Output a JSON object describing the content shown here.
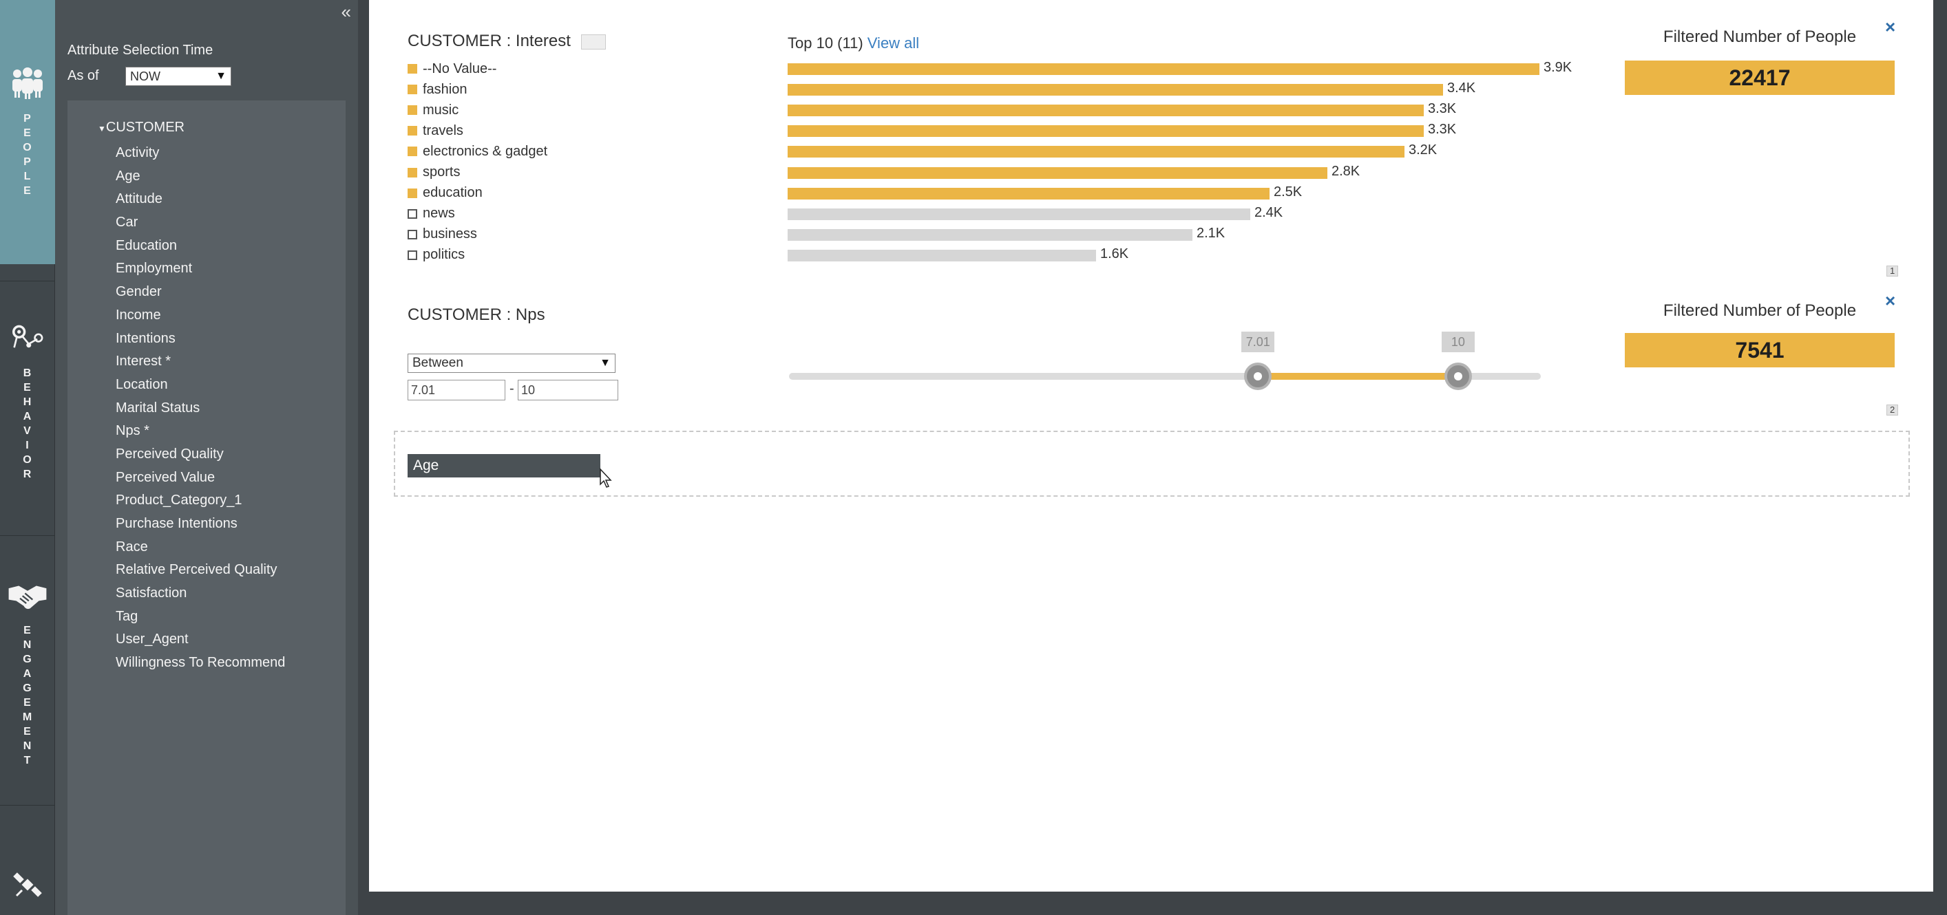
{
  "rail": {
    "items": [
      {
        "icon": "people-icon",
        "label": "PEOPLE"
      },
      {
        "icon": "behavior-icon",
        "label": "BEHAVIOR"
      },
      {
        "icon": "handshake-icon",
        "label": "ENGAGEMENT"
      },
      {
        "icon": "satellite-icon",
        "label": ""
      }
    ]
  },
  "panel": {
    "collapse_icon": "«",
    "attribute_title": "Attribute Selection Time",
    "as_of_label": "As of",
    "as_of_value": "NOW",
    "tree_root": "CUSTOMER",
    "attributes": [
      "Activity",
      "Age",
      "Attitude",
      "Car",
      "Education",
      "Employment",
      "Gender",
      "Income",
      "Intentions",
      "Interest *",
      "Location",
      "Marital Status",
      "Nps *",
      "Perceived Quality",
      "Perceived Value",
      "Product_Category_1",
      "Purchase Intentions",
      "Race",
      "Relative Perceived Quality",
      "Satisfaction",
      "Tag",
      "User_Agent",
      "Willingness To Recommend"
    ]
  },
  "interest_card": {
    "title": "CUSTOMER : Interest",
    "top_label": "Top 10 (11)",
    "view_all": "View all",
    "filtered_label": "Filtered Number of People",
    "filtered_value": "22417",
    "page_badge": "1",
    "close_icon": "×",
    "colors": {
      "selected": "#ebb545",
      "unselected": "#d6d6d6"
    }
  },
  "nps_card": {
    "title": "CUSTOMER : Nps",
    "operator": "Between",
    "min_value": "7.01",
    "max_value": "10",
    "dash": "-",
    "filtered_label": "Filtered Number of People",
    "filtered_value": "7541",
    "page_badge": "2",
    "close_icon": "×",
    "slider": {
      "range_min": 0,
      "range_max": 10,
      "low": 7.01,
      "high": 10,
      "low_label": "7.01",
      "high_label": "10"
    }
  },
  "drop_zone": {
    "chip_label": "Age"
  },
  "chart_data": {
    "type": "bar",
    "categories": [
      "--No Value--",
      "fashion",
      "music",
      "travels",
      "electronics & gadget",
      "sports",
      "education",
      "news",
      "business",
      "politics"
    ],
    "values": [
      3900,
      3400,
      3300,
      3300,
      3200,
      2800,
      2500,
      2400,
      2100,
      1600
    ],
    "value_labels": [
      "3.9K",
      "3.4K",
      "3.3K",
      "3.3K",
      "3.2K",
      "2.8K",
      "2.5K",
      "2.4K",
      "2.1K",
      "1.6K"
    ],
    "selected": [
      true,
      true,
      true,
      true,
      true,
      true,
      true,
      false,
      false,
      false
    ],
    "title": "CUSTOMER : Interest",
    "orientation": "horizontal"
  }
}
